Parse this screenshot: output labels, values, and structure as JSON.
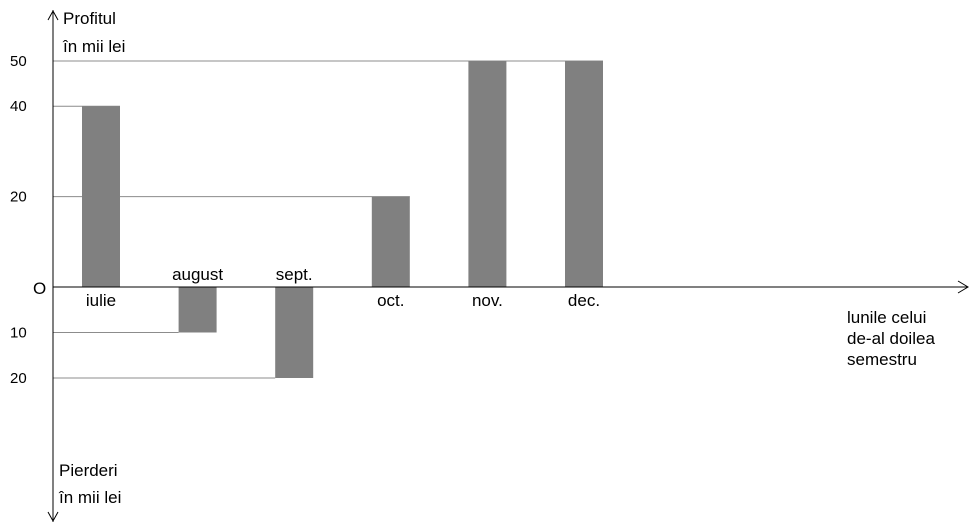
{
  "chart_data": {
    "type": "bar",
    "y_axis_positive_label": [
      "Profitul",
      "în mii lei"
    ],
    "y_axis_negative_label": [
      "Pierderi",
      "în mii lei"
    ],
    "x_axis_label": [
      "lunile celui",
      "de-al doilea",
      "semestru"
    ],
    "origin_label": "O",
    "categories": [
      "iulie",
      "august",
      "sept.",
      "oct.",
      "nov.",
      "dec."
    ],
    "values": [
      40,
      -10,
      -20,
      20,
      50,
      50
    ],
    "positive_ticks": [
      {
        "value": 20,
        "label": "20"
      },
      {
        "value": 40,
        "label": "40"
      },
      {
        "value": 50,
        "label": "50"
      }
    ],
    "negative_ticks": [
      {
        "value": -10,
        "label": "10"
      },
      {
        "value": -20,
        "label": "20"
      }
    ],
    "category_label_position": [
      "below",
      "above",
      "above",
      "below",
      "below",
      "below"
    ],
    "bar_color": "#808080",
    "guide_color": "#8c8c8c",
    "grid": false
  }
}
